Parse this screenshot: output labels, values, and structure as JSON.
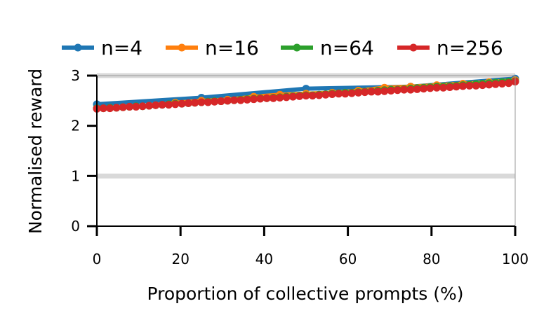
{
  "chart_data": {
    "type": "line",
    "xlabel": "Proportion of collective prompts (%)",
    "ylabel": "Normalised reward",
    "xlim": [
      0,
      100
    ],
    "ylim": [
      0,
      3
    ],
    "x_ticks": [
      "0",
      "20",
      "40",
      "60",
      "80",
      "100"
    ],
    "y_ticks": [
      "0",
      "1",
      "2",
      "3"
    ],
    "x_tick_values": [
      0,
      20,
      40,
      60,
      80,
      100
    ],
    "y_tick_values": [
      0,
      1,
      2,
      3
    ],
    "reference_lines": [
      1,
      3
    ],
    "reference_line_color": "#d9d9d9",
    "legend_position": "top",
    "grid": false,
    "series": [
      {
        "name": "n=4",
        "color": "#1f77b4",
        "x": [
          0,
          25,
          50,
          75,
          100
        ],
        "y": [
          2.43,
          2.56,
          2.74,
          2.78,
          2.94
        ]
      },
      {
        "name": "n=16",
        "color": "#ff7f0e",
        "x": [
          0,
          6.25,
          12.5,
          18.75,
          25,
          31.25,
          37.5,
          43.75,
          50,
          56.25,
          62.5,
          68.75,
          75,
          81.25,
          87.5,
          93.75,
          100
        ],
        "y": [
          2.35,
          2.37,
          2.4,
          2.46,
          2.5,
          2.52,
          2.58,
          2.62,
          2.64,
          2.66,
          2.7,
          2.76,
          2.78,
          2.81,
          2.84,
          2.87,
          2.91
        ]
      },
      {
        "name": "n=64",
        "color": "#2ca02c",
        "x": [
          0,
          1.5625,
          3.125,
          4.6875,
          6.25,
          7.8125,
          9.375,
          10.9375,
          12.5,
          14.0625,
          15.625,
          17.1875,
          18.75,
          20.3125,
          21.875,
          23.4375,
          25,
          26.5625,
          28.125,
          29.6875,
          31.25,
          32.8125,
          34.375,
          35.9375,
          37.5,
          39.0625,
          40.625,
          42.1875,
          43.75,
          45.3125,
          46.875,
          48.4375,
          50,
          51.5625,
          53.125,
          54.6875,
          56.25,
          57.8125,
          59.375,
          60.9375,
          62.5,
          64.0625,
          65.625,
          67.1875,
          68.75,
          70.3125,
          71.875,
          73.4375,
          75,
          76.5625,
          78.125,
          79.6875,
          81.25,
          82.8125,
          84.375,
          85.9375,
          87.5,
          89.0625,
          90.625,
          92.1875,
          93.75,
          95.3125,
          96.875,
          98.4375,
          100
        ],
        "y": [
          2.35,
          2.35,
          2.36,
          2.36,
          2.37,
          2.38,
          2.39,
          2.39,
          2.4,
          2.41,
          2.42,
          2.43,
          2.44,
          2.44,
          2.45,
          2.46,
          2.47,
          2.48,
          2.49,
          2.49,
          2.5,
          2.51,
          2.52,
          2.53,
          2.54,
          2.55,
          2.55,
          2.56,
          2.57,
          2.58,
          2.59,
          2.6,
          2.61,
          2.61,
          2.62,
          2.63,
          2.64,
          2.65,
          2.66,
          2.66,
          2.67,
          2.68,
          2.69,
          2.7,
          2.71,
          2.72,
          2.72,
          2.73,
          2.74,
          2.75,
          2.76,
          2.77,
          2.78,
          2.78,
          2.79,
          2.8,
          2.81,
          2.82,
          2.83,
          2.84,
          2.85,
          2.86,
          2.87,
          2.88,
          2.89
        ]
      },
      {
        "name": "n=256",
        "color": "#d62728",
        "x": [
          0,
          1.5625,
          3.125,
          4.6875,
          6.25,
          7.8125,
          9.375,
          10.9375,
          12.5,
          14.0625,
          15.625,
          17.1875,
          18.75,
          20.3125,
          21.875,
          23.4375,
          25,
          26.5625,
          28.125,
          29.6875,
          31.25,
          32.8125,
          34.375,
          35.9375,
          37.5,
          39.0625,
          40.625,
          42.1875,
          43.75,
          45.3125,
          46.875,
          48.4375,
          50,
          51.5625,
          53.125,
          54.6875,
          56.25,
          57.8125,
          59.375,
          60.9375,
          62.5,
          64.0625,
          65.625,
          67.1875,
          68.75,
          70.3125,
          71.875,
          73.4375,
          75,
          76.5625,
          78.125,
          79.6875,
          81.25,
          82.8125,
          84.375,
          85.9375,
          87.5,
          89.0625,
          90.625,
          92.1875,
          93.75,
          95.3125,
          96.875,
          98.4375,
          100
        ],
        "y": [
          2.34,
          2.35,
          2.35,
          2.36,
          2.37,
          2.38,
          2.38,
          2.39,
          2.4,
          2.41,
          2.42,
          2.42,
          2.43,
          2.44,
          2.45,
          2.46,
          2.47,
          2.47,
          2.48,
          2.49,
          2.5,
          2.51,
          2.51,
          2.52,
          2.53,
          2.54,
          2.55,
          2.55,
          2.56,
          2.57,
          2.58,
          2.59,
          2.6,
          2.6,
          2.61,
          2.62,
          2.63,
          2.64,
          2.64,
          2.65,
          2.66,
          2.67,
          2.68,
          2.68,
          2.69,
          2.7,
          2.71,
          2.72,
          2.72,
          2.73,
          2.74,
          2.75,
          2.76,
          2.76,
          2.77,
          2.78,
          2.79,
          2.8,
          2.8,
          2.81,
          2.82,
          2.83,
          2.84,
          2.85,
          2.88
        ]
      }
    ]
  }
}
